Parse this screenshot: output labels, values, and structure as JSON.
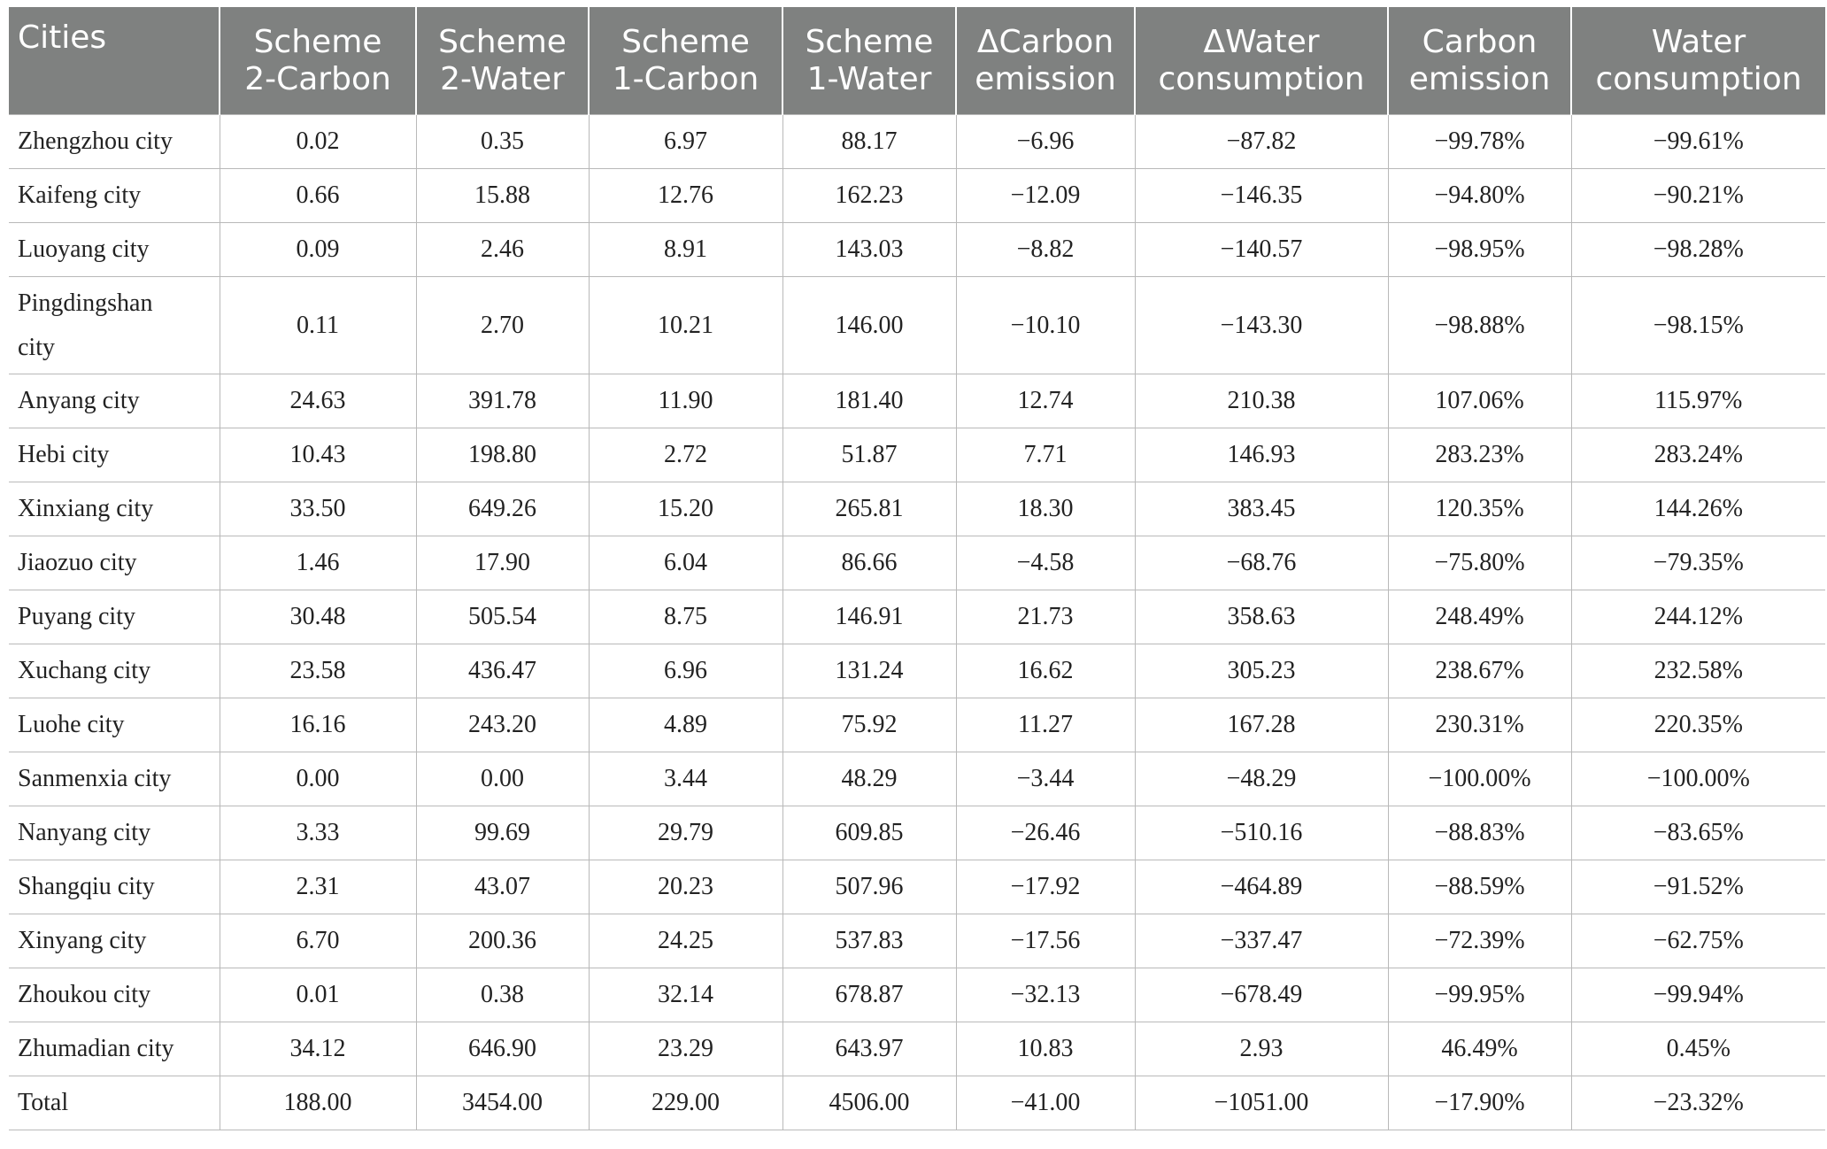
{
  "table": {
    "headers": [
      [
        "Cities"
      ],
      [
        "Scheme",
        "2-Carbon"
      ],
      [
        "Scheme",
        "2-Water"
      ],
      [
        "Scheme",
        "1-Carbon"
      ],
      [
        "Scheme",
        "1-Water"
      ],
      [
        "ΔCarbon",
        "emission"
      ],
      [
        "ΔWater",
        "consumption"
      ],
      [
        "Carbon",
        "emission"
      ],
      [
        "Water",
        "consumption"
      ]
    ],
    "rows": [
      [
        "Zhengzhou city",
        "0.02",
        "0.35",
        "6.97",
        "88.17",
        "−6.96",
        "−87.82",
        "−99.78%",
        "−99.61%"
      ],
      [
        "Kaifeng city",
        "0.66",
        "15.88",
        "12.76",
        "162.23",
        "−12.09",
        "−146.35",
        "−94.80%",
        "−90.21%"
      ],
      [
        "Luoyang city",
        "0.09",
        "2.46",
        "8.91",
        "143.03",
        "−8.82",
        "−140.57",
        "−98.95%",
        "−98.28%"
      ],
      [
        "Pingdingshan city",
        "0.11",
        "2.70",
        "10.21",
        "146.00",
        "−10.10",
        "−143.30",
        "−98.88%",
        "−98.15%"
      ],
      [
        "Anyang city",
        "24.63",
        "391.78",
        "11.90",
        "181.40",
        "12.74",
        "210.38",
        "107.06%",
        "115.97%"
      ],
      [
        "Hebi city",
        "10.43",
        "198.80",
        "2.72",
        "51.87",
        "7.71",
        "146.93",
        "283.23%",
        "283.24%"
      ],
      [
        "Xinxiang city",
        "33.50",
        "649.26",
        "15.20",
        "265.81",
        "18.30",
        "383.45",
        "120.35%",
        "144.26%"
      ],
      [
        "Jiaozuo city",
        "1.46",
        "17.90",
        "6.04",
        "86.66",
        "−4.58",
        "−68.76",
        "−75.80%",
        "−79.35%"
      ],
      [
        "Puyang city",
        "30.48",
        "505.54",
        "8.75",
        "146.91",
        "21.73",
        "358.63",
        "248.49%",
        "244.12%"
      ],
      [
        "Xuchang city",
        "23.58",
        "436.47",
        "6.96",
        "131.24",
        "16.62",
        "305.23",
        "238.67%",
        "232.58%"
      ],
      [
        "Luohe city",
        "16.16",
        "243.20",
        "4.89",
        "75.92",
        "11.27",
        "167.28",
        "230.31%",
        "220.35%"
      ],
      [
        "Sanmenxia city",
        "0.00",
        "0.00",
        "3.44",
        "48.29",
        "−3.44",
        "−48.29",
        "−100.00%",
        "−100.00%"
      ],
      [
        "Nanyang city",
        "3.33",
        "99.69",
        "29.79",
        "609.85",
        "−26.46",
        "−510.16",
        "−88.83%",
        "−83.65%"
      ],
      [
        "Shangqiu city",
        "2.31",
        "43.07",
        "20.23",
        "507.96",
        "−17.92",
        "−464.89",
        "−88.59%",
        "−91.52%"
      ],
      [
        "Xinyang city",
        "6.70",
        "200.36",
        "24.25",
        "537.83",
        "−17.56",
        "−337.47",
        "−72.39%",
        "−62.75%"
      ],
      [
        "Zhoukou city",
        "0.01",
        "0.38",
        "32.14",
        "678.87",
        "−32.13",
        "−678.49",
        "−99.95%",
        "−99.94%"
      ],
      [
        "Zhumadian city",
        "34.12",
        "646.90",
        "23.29",
        "643.97",
        "10.83",
        "2.93",
        "46.49%",
        "0.45%"
      ],
      [
        "Total",
        "188.00",
        "3454.00",
        "229.00",
        "4506.00",
        "−41.00",
        "−1051.00",
        "−17.90%",
        "−23.32%"
      ]
    ]
  }
}
